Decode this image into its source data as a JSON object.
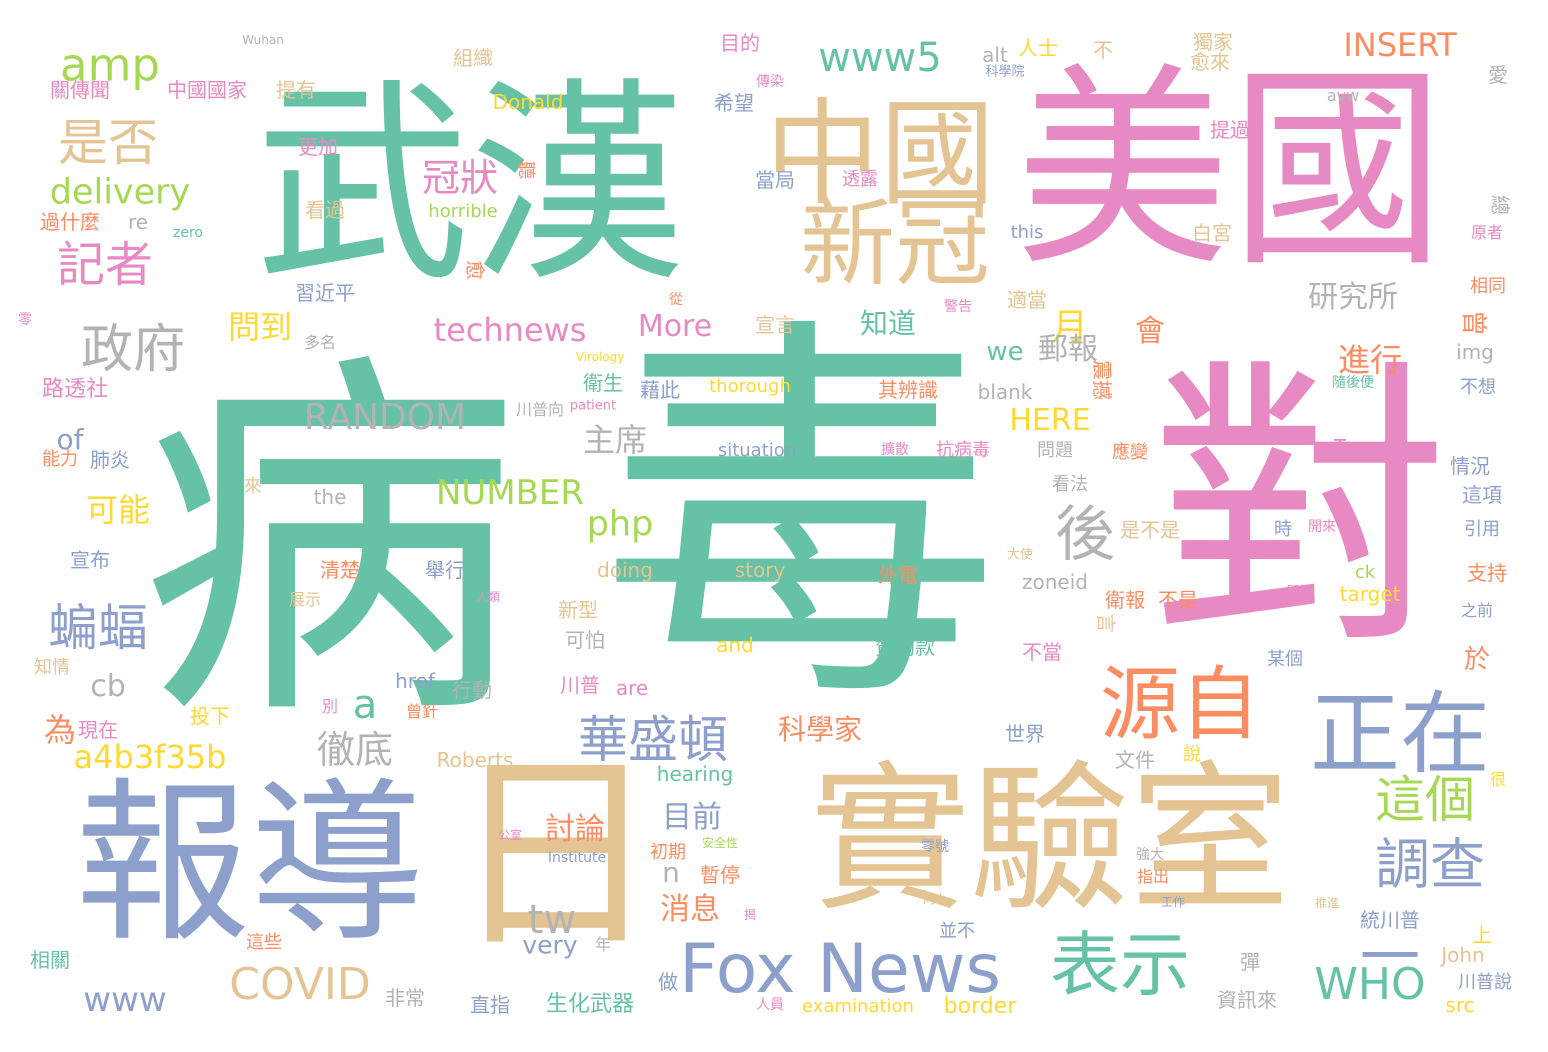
{
  "palette": {
    "green": "#66c2a5",
    "orange": "#fc8d62",
    "blue": "#8da0cb",
    "pink": "#e78ac3",
    "lime": "#a6d854",
    "yellow": "#ffd92f",
    "tan": "#e5c494",
    "gray": "#b3b3b3"
  },
  "words": [
    {
      "text": "病",
      "color": "green"
    },
    {
      "text": "毒",
      "color": "green"
    },
    {
      "text": "武漢",
      "color": "green"
    },
    {
      "text": "美國",
      "color": "pink"
    },
    {
      "text": "對",
      "color": "pink"
    },
    {
      "text": "報導",
      "color": "blue"
    },
    {
      "text": "日",
      "color": "tan"
    },
    {
      "text": "實驗室",
      "color": "tan"
    },
    {
      "text": "一",
      "color": "blue"
    },
    {
      "text": "中國",
      "color": "tan"
    },
    {
      "text": "新冠",
      "color": "tan"
    },
    {
      "text": "源自",
      "color": "orange"
    },
    {
      "text": "正在",
      "color": "blue"
    },
    {
      "text": "Fox News",
      "color": "blue"
    },
    {
      "text": "表示",
      "color": "green"
    },
    {
      "text": "調查",
      "color": "blue"
    },
    {
      "text": "這個",
      "color": "lime"
    },
    {
      "text": "華盛頓",
      "color": "blue"
    },
    {
      "text": "政府",
      "color": "gray"
    },
    {
      "text": "是否",
      "color": "tan"
    },
    {
      "text": "記者",
      "color": "pink"
    },
    {
      "text": "amp",
      "color": "lime"
    },
    {
      "text": "delivery",
      "color": "lime"
    },
    {
      "text": "蝙蝠",
      "color": "blue"
    },
    {
      "text": "www5",
      "color": "green"
    },
    {
      "text": "INSERT",
      "color": "orange"
    },
    {
      "text": "technews",
      "color": "pink"
    },
    {
      "text": "RANDOM",
      "color": "gray"
    },
    {
      "text": "COVID",
      "color": "tan"
    },
    {
      "text": "WHO",
      "color": "green"
    },
    {
      "text": "a4b3f35b",
      "color": "yellow"
    },
    {
      "text": "冠狀",
      "color": "pink"
    },
    {
      "text": "後",
      "color": "gray"
    },
    {
      "text": "徹底",
      "color": "gray"
    },
    {
      "text": "NUMBER",
      "color": "lime"
    },
    {
      "text": "www",
      "color": "blue"
    },
    {
      "text": "tw",
      "color": "gray"
    },
    {
      "text": "php",
      "color": "lime"
    },
    {
      "text": "月",
      "color": "yellow"
    },
    {
      "text": "會",
      "color": "orange"
    },
    {
      "text": "More",
      "color": "pink"
    },
    {
      "text": "HERE",
      "color": "yellow"
    },
    {
      "text": "研究所",
      "color": "gray"
    },
    {
      "text": "進行",
      "color": "orange"
    },
    {
      "text": "主席",
      "color": "gray"
    },
    {
      "text": "問到",
      "color": "yellow"
    },
    {
      "text": "知道",
      "color": "green"
    },
    {
      "text": "郵報",
      "color": "gray"
    },
    {
      "text": "we",
      "color": "green"
    },
    {
      "text": "a",
      "color": "green"
    },
    {
      "text": "可能",
      "color": "yellow"
    },
    {
      "text": "cb",
      "color": "gray"
    },
    {
      "text": "of",
      "color": "blue"
    },
    {
      "text": "為",
      "color": "orange"
    },
    {
      "text": "科學家",
      "color": "orange"
    },
    {
      "text": "目前",
      "color": "blue"
    },
    {
      "text": "消息",
      "color": "orange"
    },
    {
      "text": "n",
      "color": "gray"
    },
    {
      "text": "very",
      "color": "blue"
    },
    {
      "text": "討論",
      "color": "orange"
    },
    {
      "text": "曾",
      "color": "orange"
    },
    {
      "text": "於",
      "color": "orange"
    },
    {
      "text": "Wuhan",
      "color": "gray"
    },
    {
      "text": "關傳聞",
      "color": "pink"
    },
    {
      "text": "中國國家",
      "color": "pink"
    },
    {
      "text": "提有",
      "color": "tan"
    },
    {
      "text": "組織",
      "color": "tan"
    },
    {
      "text": "目的",
      "color": "pink"
    },
    {
      "text": "人士",
      "color": "yellow"
    },
    {
      "text": "alt",
      "color": "gray"
    },
    {
      "text": "不",
      "color": "tan"
    },
    {
      "text": "獨家",
      "color": "tan"
    },
    {
      "text": "愈來",
      "color": "tan"
    },
    {
      "text": "科學院",
      "color": "blue"
    },
    {
      "text": "傳染",
      "color": "pink"
    },
    {
      "text": "Donald",
      "color": "yellow"
    },
    {
      "text": "希望",
      "color": "blue"
    },
    {
      "text": "avw",
      "color": "gray"
    },
    {
      "text": "愛",
      "color": "gray"
    },
    {
      "text": "提過",
      "color": "pink"
    },
    {
      "text": "更加",
      "color": "pink"
    },
    {
      "text": "聽",
      "color": "orange"
    },
    {
      "text": "當局",
      "color": "blue"
    },
    {
      "text": "透露",
      "color": "pink"
    },
    {
      "text": "總",
      "color": "gray"
    },
    {
      "text": "過什麼",
      "color": "orange"
    },
    {
      "text": "re",
      "color": "gray"
    },
    {
      "text": "zero",
      "color": "green"
    },
    {
      "text": "看過",
      "color": "tan"
    },
    {
      "text": "horrible",
      "color": "lime"
    },
    {
      "text": "this",
      "color": "blue"
    },
    {
      "text": "白宮",
      "color": "tan"
    },
    {
      "text": "原者",
      "color": "pink"
    },
    {
      "text": "習近平",
      "color": "blue"
    },
    {
      "text": "愈",
      "color": "orange"
    },
    {
      "text": "適當",
      "color": "tan"
    },
    {
      "text": "相同",
      "color": "orange"
    },
    {
      "text": "零",
      "color": "pink"
    },
    {
      "text": "從",
      "color": "orange"
    },
    {
      "text": "警告",
      "color": "pink"
    },
    {
      "text": "宣言",
      "color": "tan"
    },
    {
      "text": "多名",
      "color": "gray"
    },
    {
      "text": "Virology",
      "color": "yellow"
    },
    {
      "text": "路透社",
      "color": "pink"
    },
    {
      "text": "藉此",
      "color": "blue"
    },
    {
      "text": "衛生",
      "color": "green"
    },
    {
      "text": "thorough",
      "color": "yellow"
    },
    {
      "text": "其辨識",
      "color": "orange"
    },
    {
      "text": "blank",
      "color": "gray"
    },
    {
      "text": "震撼",
      "color": "orange"
    },
    {
      "text": "img",
      "color": "gray"
    },
    {
      "text": "隨後便",
      "color": "green"
    },
    {
      "text": "不想",
      "color": "blue"
    },
    {
      "text": "川普向",
      "color": "gray"
    },
    {
      "text": "patient",
      "color": "pink"
    },
    {
      "text": "能力",
      "color": "orange"
    },
    {
      "text": "肺炎",
      "color": "blue"
    },
    {
      "text": "situation",
      "color": "blue"
    },
    {
      "text": "擴散",
      "color": "pink"
    },
    {
      "text": "抗病毒",
      "color": "pink"
    },
    {
      "text": "問題",
      "color": "gray"
    },
    {
      "text": "應變",
      "color": "orange"
    },
    {
      "text": "Trump",
      "color": "pink"
    },
    {
      "text": "情況",
      "color": "blue"
    },
    {
      "text": "來",
      "color": "tan"
    },
    {
      "text": "the",
      "color": "gray"
    },
    {
      "text": "看法",
      "color": "gray"
    },
    {
      "text": "這項",
      "color": "blue"
    },
    {
      "text": "宣布",
      "color": "blue"
    },
    {
      "text": "是不是",
      "color": "tan"
    },
    {
      "text": "時",
      "color": "blue"
    },
    {
      "text": "開來",
      "color": "pink"
    },
    {
      "text": "引用",
      "color": "blue"
    },
    {
      "text": "清楚",
      "color": "orange"
    },
    {
      "text": "舉行",
      "color": "blue"
    },
    {
      "text": "doing",
      "color": "tan"
    },
    {
      "text": "story",
      "color": "tan"
    },
    {
      "text": "外電",
      "color": "orange"
    },
    {
      "text": "大使",
      "color": "tan"
    },
    {
      "text": "ck",
      "color": "lime"
    },
    {
      "text": "支持",
      "color": "orange"
    },
    {
      "text": "展示",
      "color": "tan"
    },
    {
      "text": "人類",
      "color": "pink"
    },
    {
      "text": "zoneid",
      "color": "gray"
    },
    {
      "text": "一開始",
      "color": "pink"
    },
    {
      "text": "target",
      "color": "yellow"
    },
    {
      "text": "衛報",
      "color": "orange"
    },
    {
      "text": "不是",
      "color": "orange"
    },
    {
      "text": "新型",
      "color": "tan"
    },
    {
      "text": "言",
      "color": "tan"
    },
    {
      "text": "之前",
      "color": "blue"
    },
    {
      "text": "知情",
      "color": "tan"
    },
    {
      "text": "可怕",
      "color": "gray"
    },
    {
      "text": "and",
      "color": "yellow"
    },
    {
      "text": "贊助款",
      "color": "green"
    },
    {
      "text": "不當",
      "color": "pink"
    },
    {
      "text": "某個",
      "color": "blue"
    },
    {
      "text": "川普",
      "color": "pink"
    },
    {
      "text": "are",
      "color": "pink"
    },
    {
      "text": "別",
      "color": "pink"
    },
    {
      "text": "href",
      "color": "blue"
    },
    {
      "text": "行動",
      "color": "gray"
    },
    {
      "text": "現在",
      "color": "pink"
    },
    {
      "text": "投下",
      "color": "yellow"
    },
    {
      "text": "曾針",
      "color": "orange"
    },
    {
      "text": "世界",
      "color": "blue"
    },
    {
      "text": "說",
      "color": "yellow"
    },
    {
      "text": "很",
      "color": "yellow"
    },
    {
      "text": "Roberts",
      "color": "tan"
    },
    {
      "text": "hearing",
      "color": "green"
    },
    {
      "text": "文件",
      "color": "gray"
    },
    {
      "text": "公室",
      "color": "pink"
    },
    {
      "text": "Institute",
      "color": "blue"
    },
    {
      "text": "安全性",
      "color": "lime"
    },
    {
      "text": "初期",
      "color": "orange"
    },
    {
      "text": "暫停",
      "color": "orange"
    },
    {
      "text": "零號",
      "color": "blue"
    },
    {
      "text": "強大",
      "color": "gray"
    },
    {
      "text": "指出",
      "color": "orange"
    },
    {
      "text": "工作",
      "color": "blue"
    },
    {
      "text": "揭",
      "color": "pink"
    },
    {
      "text": "向上",
      "color": "tan"
    },
    {
      "text": "這些",
      "color": "orange"
    },
    {
      "text": "年",
      "color": "gray"
    },
    {
      "text": "並不",
      "color": "blue"
    },
    {
      "text": "推進",
      "color": "tan"
    },
    {
      "text": "統川普",
      "color": "blue"
    },
    {
      "text": "上",
      "color": "yellow"
    },
    {
      "text": "相關",
      "color": "green"
    },
    {
      "text": "非常",
      "color": "gray"
    },
    {
      "text": "彈",
      "color": "gray"
    },
    {
      "text": "John",
      "color": "tan"
    },
    {
      "text": "做",
      "color": "blue"
    },
    {
      "text": "川普說",
      "color": "blue"
    },
    {
      "text": "直指",
      "color": "blue"
    },
    {
      "text": "生化武器",
      "color": "green"
    },
    {
      "text": "人員",
      "color": "pink"
    },
    {
      "text": "examination",
      "color": "yellow"
    },
    {
      "text": "border",
      "color": "yellow"
    },
    {
      "text": "資訊來",
      "color": "gray"
    },
    {
      "text": "src",
      "color": "yellow"
    }
  ]
}
